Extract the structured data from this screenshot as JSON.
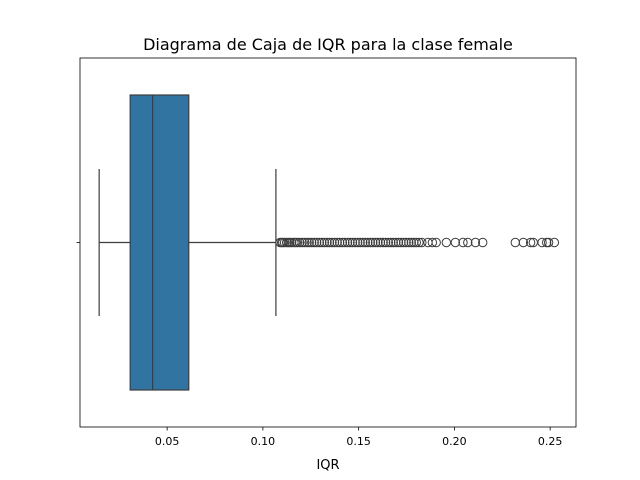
{
  "chart_data": {
    "type": "box",
    "orientation": "horizontal",
    "title": "Diagrama de Caja de IQR para la clase female",
    "xlabel": "IQR",
    "ylabel": "",
    "xlim": [
      0.0045,
      0.2635
    ],
    "xticks": [
      0.05,
      0.1,
      0.15,
      0.2,
      0.25
    ],
    "xtick_labels": [
      "0.05",
      "0.10",
      "0.15",
      "0.20",
      "0.25"
    ],
    "yticks": [
      ""
    ],
    "grid": false,
    "legend": "none",
    "box": {
      "whisker_low": 0.0145,
      "q1": 0.0307,
      "median": 0.0424,
      "q3": 0.0613,
      "whisker_high": 0.1068
    },
    "outliers": [
      0.109,
      0.1098,
      0.1104,
      0.1113,
      0.1124,
      0.1133,
      0.1141,
      0.115,
      0.1162,
      0.1171,
      0.118,
      0.1192,
      0.1205,
      0.1218,
      0.1231,
      0.1242,
      0.1255,
      0.1268,
      0.1281,
      0.1295,
      0.1308,
      0.1321,
      0.1335,
      0.1348,
      0.1361,
      0.1374,
      0.1388,
      0.1401,
      0.1415,
      0.1428,
      0.1442,
      0.1455,
      0.1468,
      0.1482,
      0.1495,
      0.1508,
      0.1522,
      0.1535,
      0.1548,
      0.1561,
      0.1574,
      0.1588,
      0.1601,
      0.1614,
      0.1628,
      0.1641,
      0.1655,
      0.1668,
      0.1681,
      0.1694,
      0.1708,
      0.1721,
      0.1735,
      0.1748,
      0.1762,
      0.1775,
      0.1788,
      0.1801,
      0.1815,
      0.183,
      0.1862,
      0.1885,
      0.1905,
      0.1958,
      0.2005,
      0.2045,
      0.207,
      0.211,
      0.2148,
      0.2318,
      0.236,
      0.2398,
      0.2412,
      0.2458,
      0.2482,
      0.2492,
      0.2522
    ],
    "colors": {
      "box_fill": "#3274a1",
      "line": "#3d3d3d",
      "outlier_edge": "#3d3d3d",
      "axes": "#000000",
      "background": "#ffffff"
    }
  }
}
